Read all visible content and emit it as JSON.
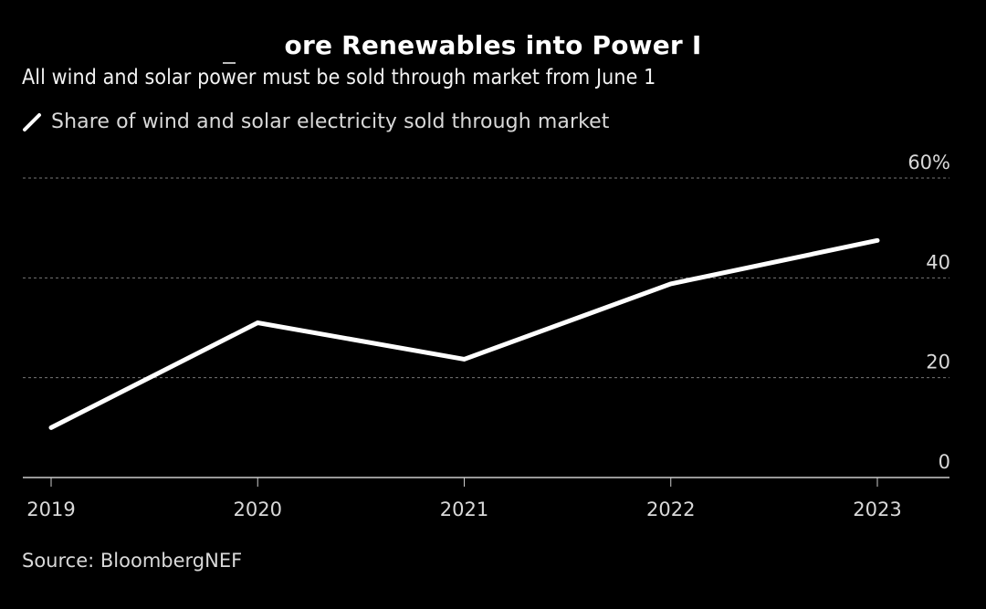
{
  "header": {
    "title": "ore Renewables into Power I",
    "subtitle": "All wind and solar power must be sold through market from June 1"
  },
  "legend": {
    "label": "Share of wind and solar electricity sold through market",
    "icon": "line-swatch-icon"
  },
  "footer": {
    "source": "Source: BloombergNEF"
  },
  "colors": {
    "background": "#000000",
    "line": "#ffffff",
    "grid": "#777777",
    "axis": "#cccccc",
    "text": "#d9d9d9"
  },
  "chart_data": {
    "type": "line",
    "title": "ore Renewables into Power I",
    "subtitle": "All wind and solar power must be sold through market from June 1",
    "x": [
      "2019",
      "2020",
      "2021",
      "2022",
      "2023"
    ],
    "series": [
      {
        "name": "Share of wind and solar electricity sold through market",
        "values": [
          10,
          31,
          23.7,
          38.8,
          47.5
        ]
      }
    ],
    "xlabel": "",
    "ylabel": "",
    "ylim": [
      0,
      60
    ],
    "yticks": [
      0,
      20,
      40,
      60
    ],
    "ytick_labels": [
      "0",
      "20",
      "40",
      "60%"
    ],
    "y_axis_side": "right",
    "grid": true,
    "grid_style": "dashed horizontal",
    "legend_position": "top-left",
    "source": "Source: BloombergNEF"
  }
}
